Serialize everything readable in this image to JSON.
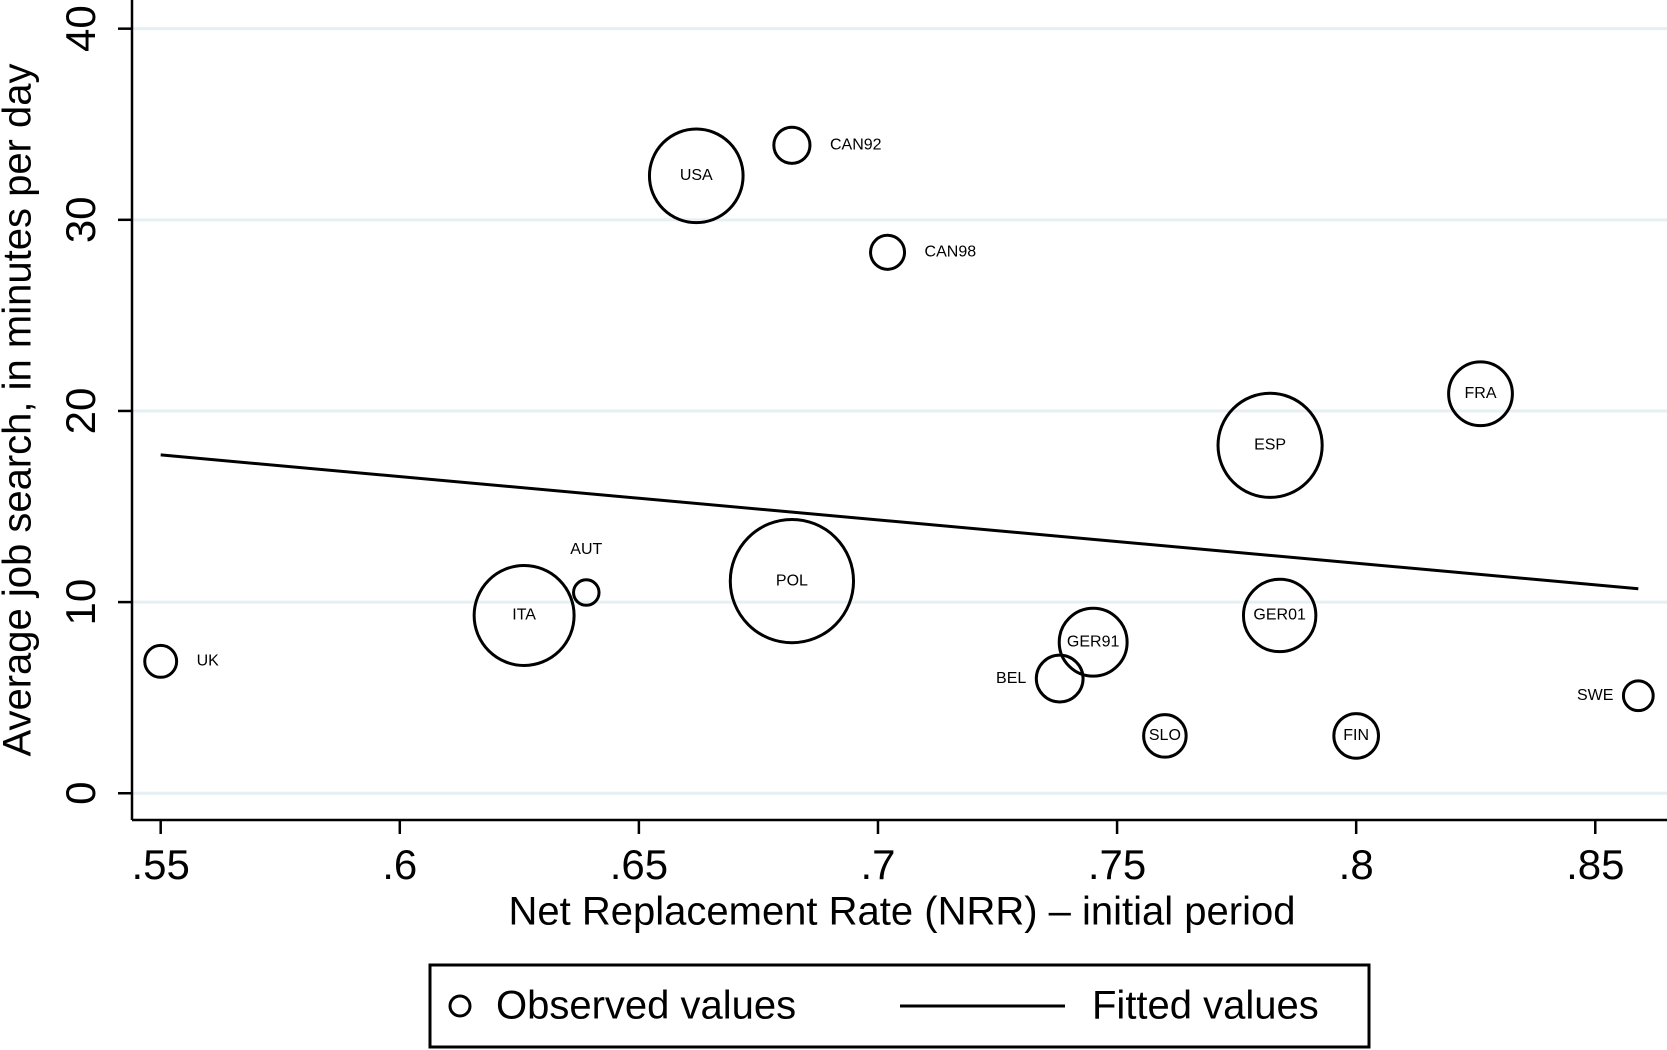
{
  "chart_data": {
    "type": "scatter",
    "x_label": "Net Replacement Rate (NRR) – initial period",
    "y_label": "Average job search, in minutes per day",
    "xlim": [
      0.544,
      0.865
    ],
    "ylim": [
      -1.4,
      41.5
    ],
    "xticks": [
      {
        "value": 0.55,
        "label": ".55"
      },
      {
        "value": 0.6,
        "label": ".6"
      },
      {
        "value": 0.65,
        "label": ".65"
      },
      {
        "value": 0.7,
        "label": ".7"
      },
      {
        "value": 0.75,
        "label": ".75"
      },
      {
        "value": 0.8,
        "label": ".8"
      },
      {
        "value": 0.85,
        "label": ".85"
      }
    ],
    "yticks": [
      0,
      10,
      20,
      30,
      40
    ],
    "grid": true,
    "series": [
      {
        "name": "Observed values",
        "color": "#000000",
        "labels": [
          "UK",
          "ITA",
          "AUT",
          "USA",
          "CAN92",
          "POL",
          "CAN98",
          "BEL",
          "GER91",
          "SLO",
          "ESP",
          "GER01",
          "FIN",
          "FRA",
          "SWE"
        ],
        "x": [
          0.55,
          0.626,
          0.639,
          0.662,
          0.682,
          0.682,
          0.702,
          0.738,
          0.745,
          0.76,
          0.782,
          0.784,
          0.8,
          0.826,
          0.859
        ],
        "values": [
          6.9,
          9.3,
          10.5,
          32.3,
          33.9,
          11.1,
          28.3,
          6.0,
          7.9,
          3.0,
          18.2,
          9.3,
          3.0,
          20.9,
          5.1
        ],
        "sizes": [
          2.25,
          22.1,
          1.44,
          19.4,
          2.89,
          33.6,
          2.56,
          4.84,
          10.2,
          4.0,
          24.0,
          11.6,
          4.41,
          9.0,
          1.96
        ]
      },
      {
        "name": "Fitted values",
        "color": "#000000",
        "x": [
          0.55,
          0.859
        ],
        "values": [
          17.7,
          10.7
        ]
      }
    ]
  }
}
